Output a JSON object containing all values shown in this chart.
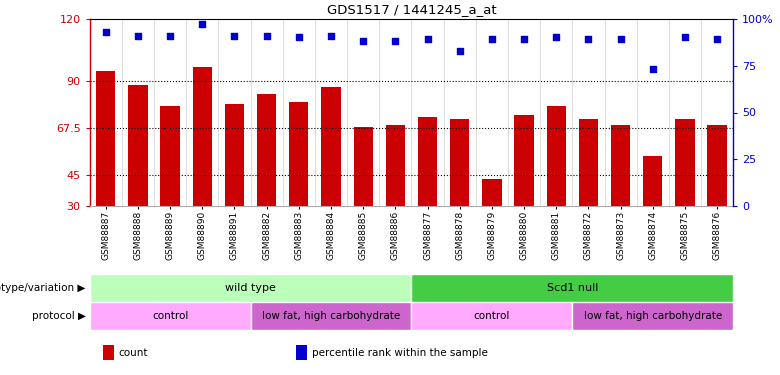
{
  "title": "GDS1517 / 1441245_a_at",
  "samples": [
    "GSM88887",
    "GSM88888",
    "GSM88889",
    "GSM88890",
    "GSM88891",
    "GSM88882",
    "GSM88883",
    "GSM88884",
    "GSM88885",
    "GSM88886",
    "GSM88877",
    "GSM88878",
    "GSM88879",
    "GSM88880",
    "GSM88881",
    "GSM88872",
    "GSM88873",
    "GSM88874",
    "GSM88875",
    "GSM88876"
  ],
  "bar_values": [
    95,
    88,
    78,
    97,
    79,
    84,
    80,
    87,
    68,
    69,
    73,
    72,
    43,
    74,
    78,
    72,
    69,
    54,
    72,
    69
  ],
  "dot_values_pct": [
    93,
    91,
    91,
    97,
    91,
    91,
    90,
    91,
    88,
    88,
    89,
    83,
    89,
    89,
    90,
    89,
    89,
    73,
    90,
    89
  ],
  "left_ylim": [
    30,
    120
  ],
  "left_yticks": [
    30,
    45,
    67.5,
    90,
    120
  ],
  "left_yticklabels": [
    "30",
    "45",
    "67.5",
    "90",
    "120"
  ],
  "right_ylim": [
    0,
    100
  ],
  "right_yticks": [
    0,
    25,
    50,
    75,
    100
  ],
  "right_yticklabels": [
    "0",
    "25",
    "50",
    "75",
    "100%"
  ],
  "hlines": [
    90,
    67.5,
    45
  ],
  "bar_color": "#cc0000",
  "dot_color": "#0000cc",
  "genotype_groups": [
    {
      "label": "wild type",
      "start": 0,
      "end": 10,
      "color": "#bbffbb"
    },
    {
      "label": "Scd1 null",
      "start": 10,
      "end": 20,
      "color": "#44cc44"
    }
  ],
  "protocol_groups": [
    {
      "label": "control",
      "start": 0,
      "end": 5,
      "color": "#ffaaff"
    },
    {
      "label": "low fat, high carbohydrate",
      "start": 5,
      "end": 10,
      "color": "#cc66cc"
    },
    {
      "label": "control",
      "start": 10,
      "end": 15,
      "color": "#ffaaff"
    },
    {
      "label": "low fat, high carbohydrate",
      "start": 15,
      "end": 20,
      "color": "#cc66cc"
    }
  ],
  "legend_items": [
    {
      "label": "count",
      "color": "#cc0000"
    },
    {
      "label": "percentile rank within the sample",
      "color": "#0000cc"
    }
  ],
  "genotype_label": "genotype/variation",
  "protocol_label": "protocol"
}
